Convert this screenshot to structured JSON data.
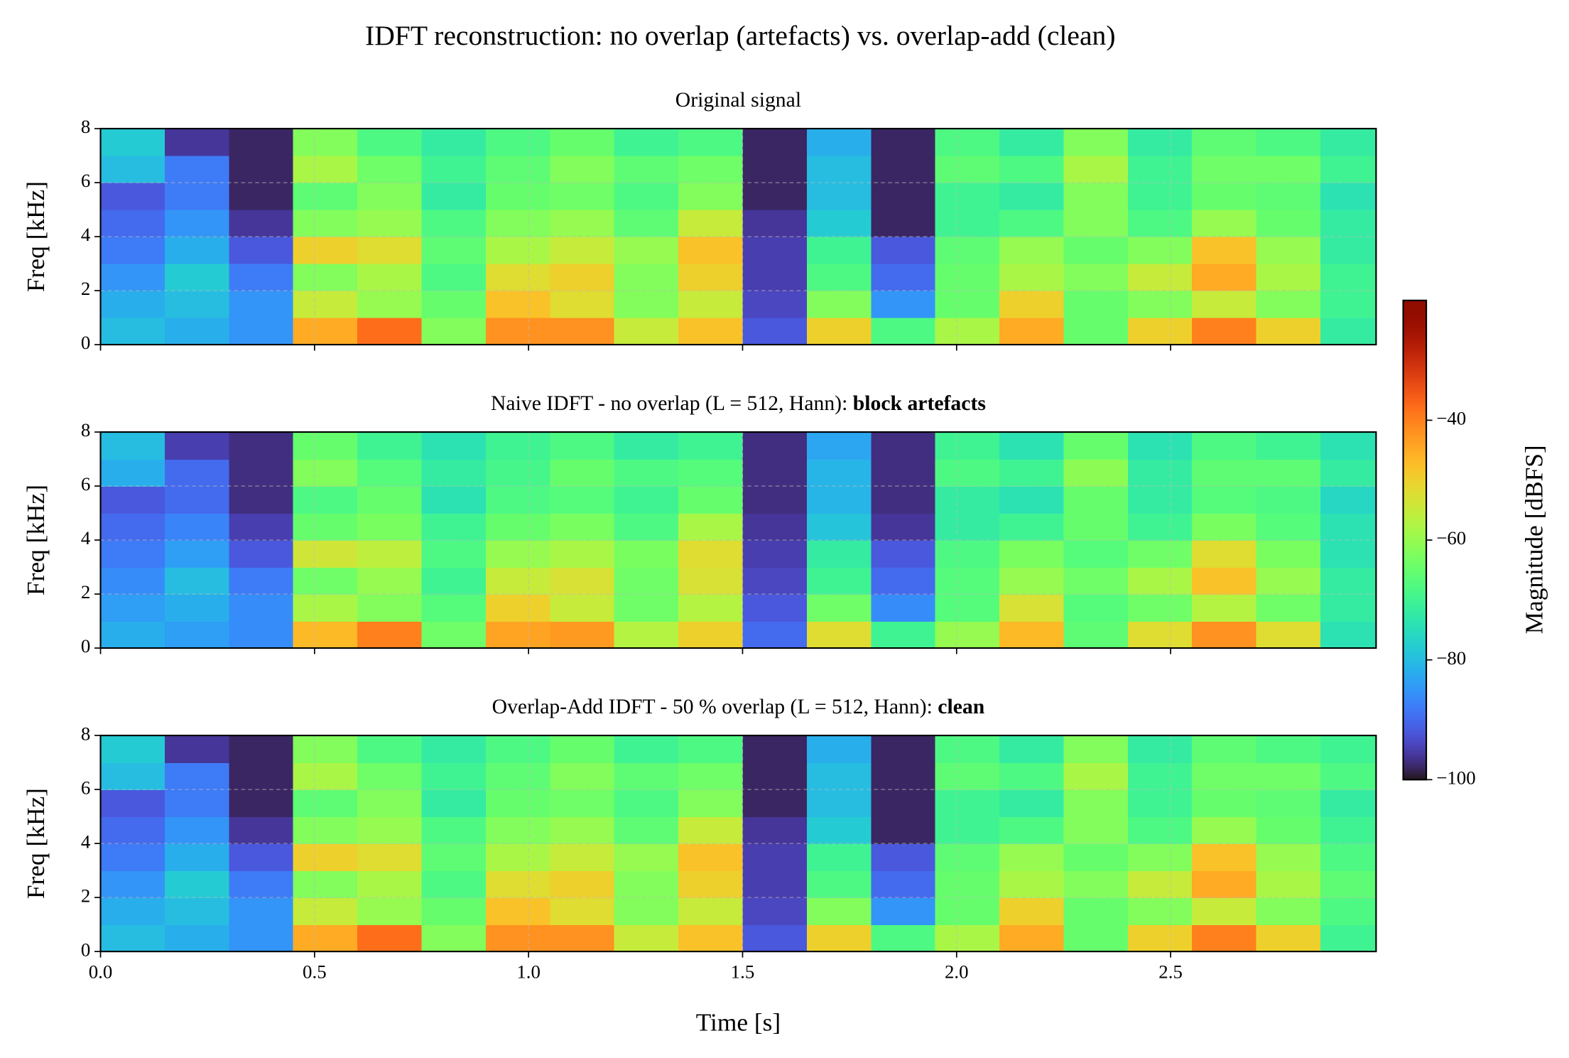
{
  "chart_data": {
    "type": "heatmap",
    "title": "IDFT reconstruction: no overlap (artefacts) vs. overlap-add (clean)",
    "xlabel": "Time [s]",
    "ylabel": "Freq [kHz]",
    "xlim": [
      0,
      2.98
    ],
    "ylim": [
      0,
      8
    ],
    "xticks": [
      {
        "value": 0,
        "label": "0.0"
      },
      0.5,
      {
        "value": 1,
        "label": "1.0"
      },
      1.5,
      {
        "value": 2,
        "label": "2.0"
      },
      2.5
    ],
    "yticks": [
      0,
      2,
      4,
      6,
      8
    ],
    "grid": true,
    "colormap": "turbo",
    "clim": [
      -100,
      -20
    ],
    "colorbar_label": "Magnitude [dBFS]",
    "cticks": [
      {
        "value": -40,
        "label": "−40"
      },
      {
        "value": -60,
        "label": "−60"
      },
      {
        "value": -80,
        "label": "−80"
      },
      {
        "value": -100,
        "label": "−100"
      }
    ],
    "x_edges": [
      0,
      0.15,
      0.3,
      0.45,
      0.6,
      0.75,
      0.9,
      1.05,
      1.2,
      1.35,
      1.5,
      1.65,
      1.8,
      1.95,
      2.1,
      2.25,
      2.4,
      2.55,
      2.7,
      2.85,
      2.98
    ],
    "y_edges": [
      0,
      1,
      2,
      3,
      4,
      5,
      6,
      7,
      8
    ],
    "panels": [
      {
        "title": "Original signal",
        "values": [
          [
            -80,
            -82,
            -85,
            -45,
            -38,
            -62,
            -42,
            -42,
            -55,
            -48,
            -92,
            -50,
            -68,
            -58,
            -45,
            -65,
            -50,
            -40,
            -50,
            -72
          ],
          [
            -82,
            -80,
            -85,
            -55,
            -60,
            -65,
            -48,
            -52,
            -62,
            -55,
            -94,
            -62,
            -85,
            -65,
            -50,
            -65,
            -62,
            -55,
            -62,
            -70
          ],
          [
            -85,
            -78,
            -88,
            -62,
            -58,
            -68,
            -52,
            -50,
            -62,
            -50,
            -95,
            -68,
            -90,
            -65,
            -58,
            -62,
            -55,
            -45,
            -58,
            -70
          ],
          [
            -88,
            -82,
            -92,
            -50,
            -52,
            -66,
            -58,
            -55,
            -60,
            -48,
            -95,
            -70,
            -92,
            -66,
            -60,
            -65,
            -62,
            -48,
            -60,
            -72
          ],
          [
            -90,
            -85,
            -96,
            -62,
            -60,
            -68,
            -62,
            -60,
            -66,
            -55,
            -96,
            -78,
            -98,
            -70,
            -68,
            -62,
            -68,
            -60,
            -65,
            -72
          ],
          [
            -92,
            -88,
            -98,
            -66,
            -62,
            -72,
            -65,
            -64,
            -68,
            -62,
            -98,
            -80,
            -98,
            -70,
            -72,
            -62,
            -70,
            -65,
            -66,
            -74
          ],
          [
            -80,
            -88,
            -98,
            -58,
            -64,
            -70,
            -66,
            -62,
            -66,
            -64,
            -98,
            -80,
            -98,
            -66,
            -68,
            -58,
            -70,
            -64,
            -64,
            -70
          ],
          [
            -78,
            -96,
            -98,
            -62,
            -68,
            -72,
            -68,
            -65,
            -70,
            -68,
            -98,
            -82,
            -98,
            -68,
            -72,
            -62,
            -72,
            -66,
            -68,
            -72
          ]
        ]
      },
      {
        "title": "Naive IDFT - no overlap (L = 512, Hann):",
        "title_bold": "block artefacts",
        "values": [
          [
            -82,
            -84,
            -86,
            -47,
            -40,
            -64,
            -44,
            -43,
            -57,
            -50,
            -90,
            -52,
            -70,
            -60,
            -47,
            -66,
            -52,
            -42,
            -52,
            -74
          ],
          [
            -84,
            -82,
            -86,
            -58,
            -62,
            -67,
            -50,
            -55,
            -64,
            -57,
            -92,
            -64,
            -86,
            -67,
            -53,
            -67,
            -64,
            -57,
            -64,
            -72
          ],
          [
            -86,
            -80,
            -88,
            -64,
            -60,
            -70,
            -55,
            -53,
            -64,
            -53,
            -94,
            -70,
            -90,
            -67,
            -60,
            -64,
            -58,
            -48,
            -60,
            -72
          ],
          [
            -88,
            -84,
            -92,
            -54,
            -56,
            -68,
            -60,
            -58,
            -63,
            -52,
            -95,
            -72,
            -92,
            -68,
            -63,
            -67,
            -64,
            -52,
            -63,
            -74
          ],
          [
            -90,
            -87,
            -95,
            -65,
            -63,
            -70,
            -65,
            -63,
            -68,
            -58,
            -96,
            -79,
            -96,
            -72,
            -70,
            -65,
            -70,
            -63,
            -67,
            -74
          ],
          [
            -92,
            -90,
            -97,
            -68,
            -65,
            -74,
            -68,
            -67,
            -70,
            -65,
            -97,
            -81,
            -97,
            -72,
            -74,
            -65,
            -72,
            -67,
            -68,
            -76
          ],
          [
            -82,
            -90,
            -97,
            -62,
            -67,
            -72,
            -69,
            -65,
            -68,
            -67,
            -97,
            -81,
            -97,
            -68,
            -70,
            -61,
            -72,
            -66,
            -66,
            -72
          ],
          [
            -80,
            -95,
            -97,
            -65,
            -70,
            -74,
            -70,
            -68,
            -72,
            -70,
            -97,
            -83,
            -97,
            -70,
            -74,
            -65,
            -74,
            -68,
            -70,
            -74
          ]
        ]
      },
      {
        "title": "Overlap-Add IDFT - 50 % overlap (L = 512, Hann):",
        "title_bold": "clean",
        "values": [
          [
            -80,
            -82,
            -85,
            -45,
            -38,
            -62,
            -42,
            -42,
            -55,
            -48,
            -92,
            -50,
            -68,
            -58,
            -45,
            -65,
            -50,
            -40,
            -50,
            -70
          ],
          [
            -82,
            -80,
            -85,
            -55,
            -60,
            -65,
            -48,
            -52,
            -62,
            -55,
            -94,
            -62,
            -85,
            -65,
            -50,
            -65,
            -62,
            -55,
            -62,
            -68
          ],
          [
            -85,
            -78,
            -88,
            -62,
            -58,
            -68,
            -52,
            -50,
            -62,
            -50,
            -95,
            -68,
            -90,
            -65,
            -58,
            -62,
            -55,
            -45,
            -58,
            -66
          ],
          [
            -88,
            -82,
            -92,
            -50,
            -52,
            -66,
            -58,
            -55,
            -60,
            -48,
            -95,
            -70,
            -92,
            -66,
            -60,
            -65,
            -62,
            -48,
            -60,
            -68
          ],
          [
            -90,
            -85,
            -96,
            -62,
            -60,
            -68,
            -62,
            -60,
            -66,
            -55,
            -96,
            -78,
            -98,
            -70,
            -68,
            -62,
            -68,
            -60,
            -65,
            -70
          ],
          [
            -92,
            -88,
            -98,
            -66,
            -62,
            -72,
            -65,
            -64,
            -68,
            -62,
            -98,
            -80,
            -98,
            -70,
            -72,
            -62,
            -70,
            -65,
            -66,
            -72
          ],
          [
            -80,
            -88,
            -98,
            -58,
            -64,
            -70,
            -66,
            -62,
            -66,
            -64,
            -98,
            -80,
            -98,
            -66,
            -68,
            -58,
            -70,
            -64,
            -64,
            -68
          ],
          [
            -78,
            -96,
            -98,
            -62,
            -68,
            -72,
            -68,
            -65,
            -70,
            -68,
            -98,
            -82,
            -98,
            -68,
            -72,
            -62,
            -72,
            -66,
            -68,
            -70
          ]
        ]
      }
    ]
  }
}
